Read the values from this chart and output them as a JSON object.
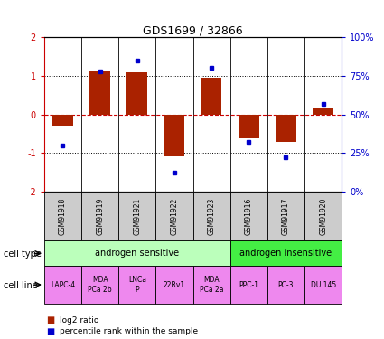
{
  "title": "GDS1699 / 32866",
  "samples": [
    "GSM91918",
    "GSM91919",
    "GSM91921",
    "GSM91922",
    "GSM91923",
    "GSM91916",
    "GSM91917",
    "GSM91920"
  ],
  "log2_ratio": [
    -0.28,
    1.12,
    1.08,
    -1.08,
    0.95,
    -0.62,
    -0.72,
    0.15
  ],
  "percentile_rank": [
    30,
    78,
    85,
    12,
    80,
    32,
    22,
    57
  ],
  "cell_type_groups": [
    {
      "label": "androgen sensitive",
      "span": [
        0,
        5
      ],
      "color": "#bbffbb"
    },
    {
      "label": "androgen insensitive",
      "span": [
        5,
        8
      ],
      "color": "#44ee44"
    }
  ],
  "cell_lines": [
    "LAPC-4",
    "MDA\nPCa 2b",
    "LNCa\nP",
    "22Rv1",
    "MDA\nPCa 2a",
    "PPC-1",
    "PC-3",
    "DU 145"
  ],
  "cell_line_color": "#ee88ee",
  "gsm_bg_color": "#cccccc",
  "ylim": [
    -2,
    2
  ],
  "yticks_left": [
    -2,
    -1,
    0,
    1,
    2
  ],
  "bar_color": "#aa2200",
  "dot_color": "#0000cc",
  "hline_color": "#cc0000",
  "dotline_color": "#000000",
  "legend_bar_label": "log2 ratio",
  "legend_dot_label": "percentile rank within the sample",
  "left_label_color": "#cc0000",
  "right_label_color": "#0000cc",
  "right_ytick_labels": [
    "0%",
    "25%",
    "50%",
    "75%",
    "100%"
  ],
  "right_ytick_vals": [
    -2,
    -1,
    0,
    1,
    2
  ]
}
